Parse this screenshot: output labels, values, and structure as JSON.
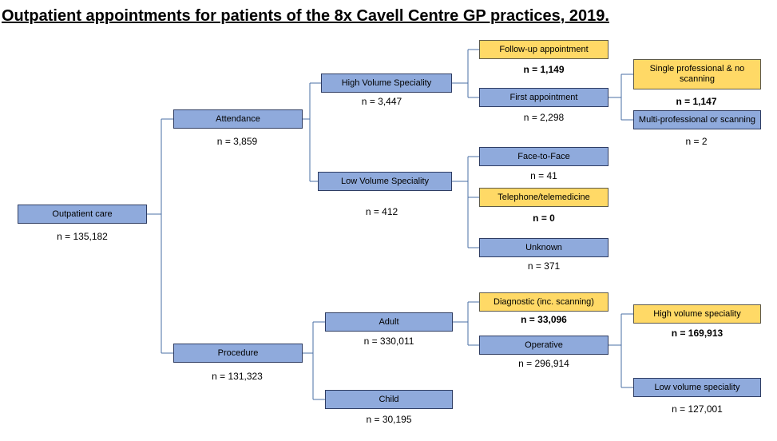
{
  "title": "Outpatient appointments for patients of the 8x Cavell Centre GP practices, 2019.",
  "nodes": {
    "outpatient": {
      "label": "Outpatient care",
      "count": "n = 135,182"
    },
    "attendance": {
      "label": "Attendance",
      "count": "n = 3,859"
    },
    "procedure": {
      "label": "Procedure",
      "count": "n = 131,323"
    },
    "high_volume": {
      "label": "High Volume Speciality",
      "count": "n = 3,447"
    },
    "low_volume": {
      "label": "Low Volume Speciality",
      "count": "n = 412"
    },
    "follow_up": {
      "label": "Follow-up appointment",
      "count": "n = 1,149"
    },
    "first_appt": {
      "label": "First appointment",
      "count": "n = 2,298"
    },
    "single_prof": {
      "label": "Single professional & no scanning",
      "count": "n = 1,147"
    },
    "multi_prof": {
      "label": "Multi-professional or scanning",
      "count": "n = 2"
    },
    "face_to_face": {
      "label": "Face-to-Face",
      "count": "n = 41"
    },
    "telephone": {
      "label": "Telephone/telemedicine",
      "count": "n = 0"
    },
    "unknown": {
      "label": "Unknown",
      "count": "n = 371"
    },
    "adult": {
      "label": "Adult",
      "count": "n = 330,011"
    },
    "child": {
      "label": "Child",
      "count": "n = 30,195"
    },
    "diagnostic": {
      "label": "Diagnostic (inc. scanning)",
      "count": "n = 33,096"
    },
    "operative": {
      "label": "Operative",
      "count": "n = 296,914"
    },
    "proc_high": {
      "label": "High volume speciality",
      "count": "n = 169,913"
    },
    "proc_low": {
      "label": "Low volume speciality",
      "count": "n = 127,001"
    }
  },
  "colors": {
    "box_blue": "#8faadc",
    "box_yellow": "#ffd966",
    "connector": "#4a6fa5"
  }
}
